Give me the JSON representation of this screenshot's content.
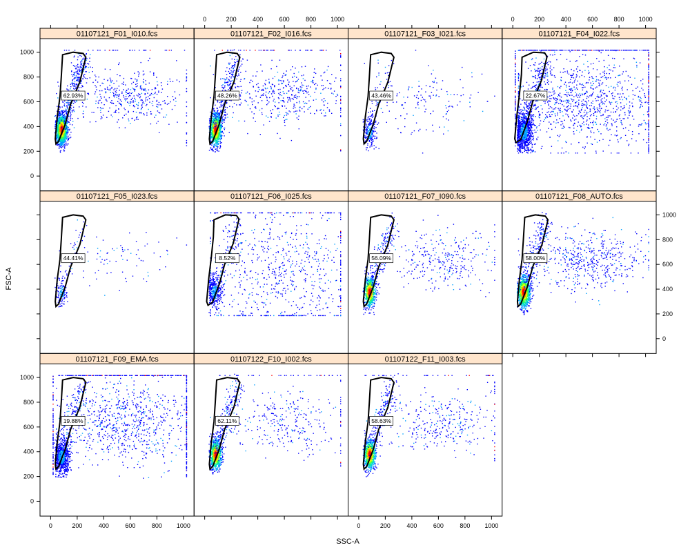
{
  "chart_data": {
    "type": "scatter",
    "subtype": "flow-cytometry density plot with gate",
    "xlabel": "SSC-A",
    "ylabel": "FSC-A",
    "xlim": [
      -80,
      1080
    ],
    "ylim": [
      -120,
      1110
    ],
    "x_ticks": [
      0,
      200,
      400,
      600,
      800,
      1000
    ],
    "y_ticks": [
      0,
      200,
      400,
      600,
      800,
      1000
    ],
    "density_colors": [
      "#0000ff",
      "#00a0ff",
      "#00e0c0",
      "#40ff40",
      "#e0ff00",
      "#ff8000",
      "#ff0000"
    ],
    "gate_polygon": [
      [
        90,
        980
      ],
      [
        170,
        1000
      ],
      [
        245,
        990
      ],
      [
        265,
        960
      ],
      [
        220,
        760
      ],
      [
        150,
        580
      ],
      [
        110,
        420
      ],
      [
        60,
        280
      ],
      [
        40,
        260
      ],
      [
        35,
        300
      ],
      [
        50,
        480
      ],
      [
        70,
        640
      ],
      [
        80,
        800
      ]
    ],
    "gate_polygon_wide": [
      [
        70,
        960
      ],
      [
        155,
        1000
      ],
      [
        240,
        995
      ],
      [
        258,
        965
      ],
      [
        215,
        770
      ],
      [
        150,
        600
      ],
      [
        110,
        440
      ],
      [
        60,
        295
      ],
      [
        25,
        270
      ],
      [
        15,
        300
      ],
      [
        30,
        480
      ],
      [
        50,
        660
      ],
      [
        65,
        820
      ]
    ],
    "panels": [
      {
        "name": "01107121_F01_I010.fcs",
        "gate_pct": "62.93%",
        "main_n": 1400,
        "main_center": [
          80,
          380
        ],
        "main_sd": [
          22,
          60
        ],
        "sparse_n": 420,
        "sparse_center": [
          580,
          650
        ],
        "sparse_sd": [
          200,
          110
        ],
        "saturation_line": 0.2,
        "dense": true
      },
      {
        "name": "01107121_F02_I016.fcs",
        "gate_pct": "48.26%",
        "main_n": 1100,
        "main_center": [
          80,
          380
        ],
        "main_sd": [
          22,
          65
        ],
        "sparse_n": 420,
        "sparse_center": [
          600,
          660
        ],
        "sparse_sd": [
          210,
          120
        ],
        "saturation_line": 0.3,
        "dense": true
      },
      {
        "name": "01107121_F03_I021.fcs",
        "gate_pct": "43.46%",
        "main_n": 220,
        "main_center": [
          80,
          360
        ],
        "main_sd": [
          25,
          70
        ],
        "sparse_n": 140,
        "sparse_center": [
          550,
          600
        ],
        "sparse_sd": [
          220,
          160
        ],
        "saturation_line": 0,
        "dense": false
      },
      {
        "name": "01107121_F04_I022.fcs",
        "gate_pct": "22.67%",
        "main_n": 900,
        "main_center": [
          80,
          360
        ],
        "main_sd": [
          35,
          80
        ],
        "sparse_n": 1000,
        "sparse_center": [
          520,
          620
        ],
        "sparse_sd": [
          280,
          190
        ],
        "saturation_line": 1,
        "dense": false
      },
      {
        "name": "01107121_F05_I023.fcs",
        "gate_pct": "44.41%",
        "main_n": 130,
        "main_center": [
          80,
          380
        ],
        "main_sd": [
          22,
          60
        ],
        "sparse_n": 80,
        "sparse_center": [
          500,
          650
        ],
        "sparse_sd": [
          200,
          130
        ],
        "saturation_line": 0,
        "dense": false
      },
      {
        "name": "01107121_F06_I025.fcs",
        "gate_pct": "8.52%",
        "main_n": 380,
        "main_center": [
          70,
          380
        ],
        "main_sd": [
          30,
          70
        ],
        "sparse_n": 700,
        "sparse_center": [
          550,
          520
        ],
        "sparse_sd": [
          300,
          280
        ],
        "saturation_line": 0.3,
        "dense": false
      },
      {
        "name": "01107121_F07_I090.fcs",
        "gate_pct": "56.09%",
        "main_n": 700,
        "main_center": [
          80,
          380
        ],
        "main_sd": [
          22,
          60
        ],
        "sparse_n": 300,
        "sparse_center": [
          620,
          640
        ],
        "sparse_sd": [
          200,
          120
        ],
        "saturation_line": 0,
        "dense": true
      },
      {
        "name": "01107121_F08_AUTO.fcs",
        "gate_pct": "58.00%",
        "main_n": 1000,
        "main_center": [
          80,
          380
        ],
        "main_sd": [
          24,
          65
        ],
        "sparse_n": 500,
        "sparse_center": [
          580,
          640
        ],
        "sparse_sd": [
          210,
          120
        ],
        "saturation_line": 0,
        "dense": true
      },
      {
        "name": "01107121_F09_EMA.fcs",
        "gate_pct": "19.88%",
        "main_n": 700,
        "main_center": [
          80,
          360
        ],
        "main_sd": [
          30,
          70
        ],
        "sparse_n": 800,
        "sparse_center": [
          560,
          640
        ],
        "sparse_sd": [
          260,
          170
        ],
        "saturation_line": 1,
        "dense": false
      },
      {
        "name": "01107122_F10_I002.fcs",
        "gate_pct": "62.11%",
        "main_n": 900,
        "main_center": [
          80,
          380
        ],
        "main_sd": [
          22,
          60
        ],
        "sparse_n": 280,
        "sparse_center": [
          600,
          640
        ],
        "sparse_sd": [
          200,
          120
        ],
        "saturation_line": 0.2,
        "dense": true
      },
      {
        "name": "01107122_F11_I003.fcs",
        "gate_pct": "58.63%",
        "main_n": 800,
        "main_center": [
          80,
          380
        ],
        "main_sd": [
          22,
          60
        ],
        "sparse_n": 300,
        "sparse_center": [
          600,
          640
        ],
        "sparse_sd": [
          200,
          120
        ],
        "saturation_line": 0.2,
        "dense": true
      }
    ]
  }
}
